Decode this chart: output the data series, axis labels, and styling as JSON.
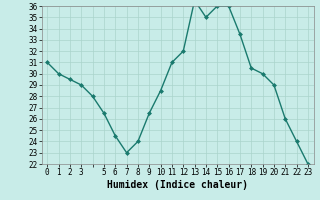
{
  "xlabel": "Humidex (Indice chaleur)",
  "x": [
    0,
    1,
    2,
    3,
    4,
    5,
    6,
    7,
    8,
    9,
    10,
    11,
    12,
    13,
    14,
    15,
    16,
    17,
    18,
    19,
    20,
    21,
    22,
    23
  ],
  "y": [
    31.0,
    30.0,
    29.5,
    29.0,
    28.0,
    26.5,
    24.5,
    23.0,
    24.0,
    26.5,
    28.5,
    31.0,
    32.0,
    36.5,
    35.0,
    36.0,
    36.0,
    33.5,
    30.5,
    30.0,
    29.0,
    26.0,
    24.0,
    22.0
  ],
  "ylim": [
    22,
    36
  ],
  "xlim": [
    -0.5,
    23.5
  ],
  "line_color": "#1a7a6e",
  "marker": "D",
  "marker_size": 2,
  "bg_color": "#c8ece8",
  "grid_color": "#aad4cc",
  "tick_fontsize": 5.5,
  "label_fontsize": 7.0,
  "yticks": [
    22,
    23,
    24,
    25,
    26,
    27,
    28,
    29,
    30,
    31,
    32,
    33,
    34,
    35,
    36
  ]
}
